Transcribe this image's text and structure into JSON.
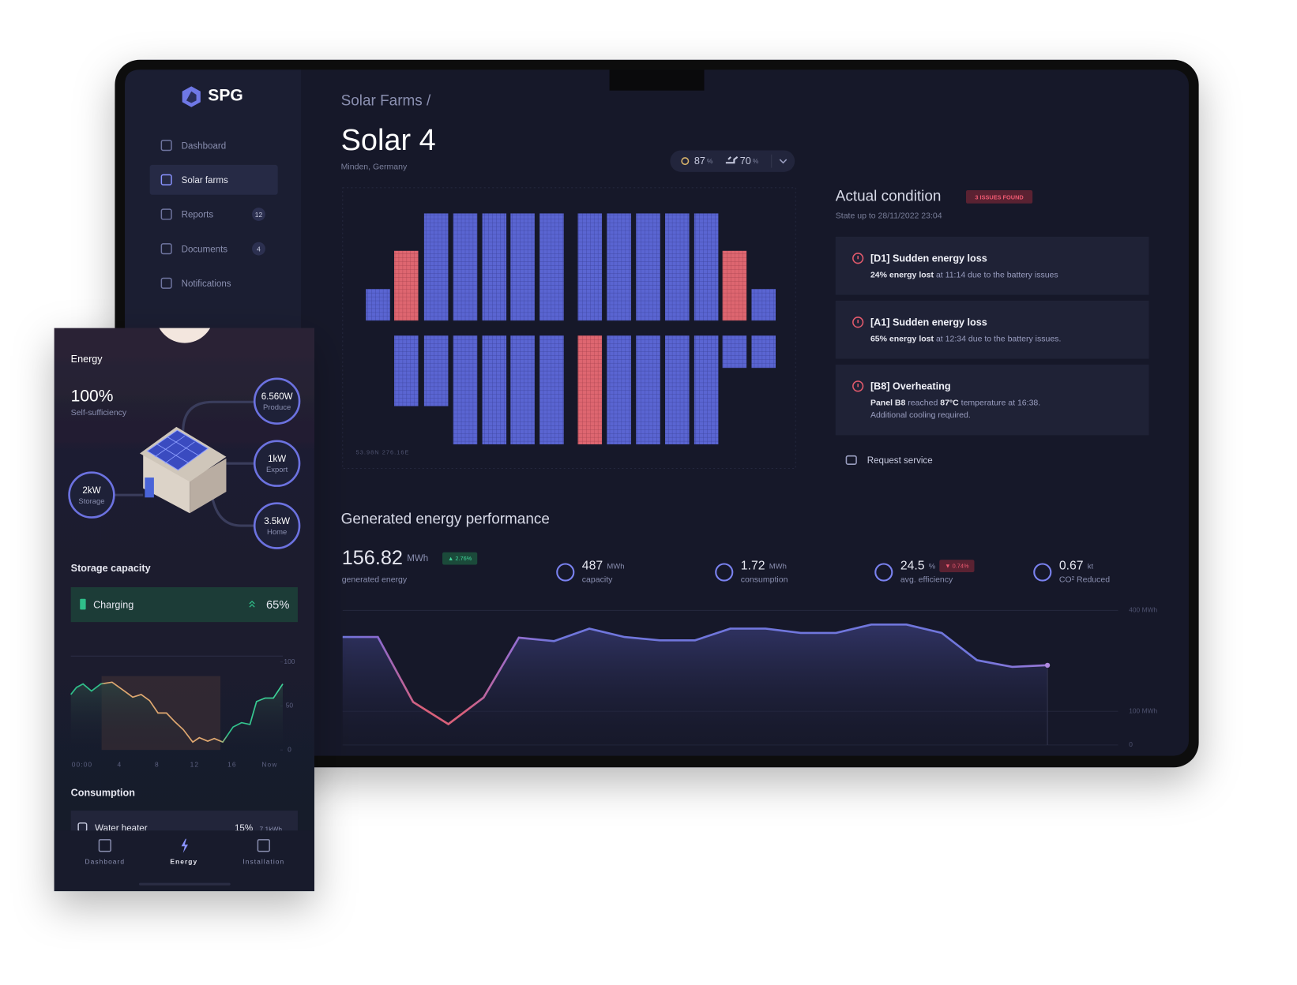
{
  "sidebar": {
    "logo": "SPG",
    "nav": [
      {
        "label": "Dashboard"
      },
      {
        "label": "Solar farms",
        "active": true
      },
      {
        "label": "Reports",
        "badge": 12
      },
      {
        "label": "Documents",
        "badge": 4
      },
      {
        "label": "Notifications"
      }
    ]
  },
  "header": {
    "breadcrumb": "Solar Farms /",
    "title": "Solar 4",
    "location": "Minden, Germany",
    "weather": [
      {
        "value": 87,
        "unit": "%"
      },
      {
        "value": 70,
        "unit": "%"
      }
    ]
  },
  "farm_map": {
    "coordinates": "53.98N  276.16E"
  },
  "condition": {
    "title": "Actual condition",
    "badge": "3 ISSUES FOUND",
    "state": "State up to 28/11/2022 23:04",
    "issues": [
      {
        "title": "[D1] Sudden energy loss",
        "detail": [
          {
            "text": "24% energy lost",
            "bold": true
          },
          {
            "text": " at 11:14 due to the battery issues"
          }
        ]
      },
      {
        "title": "[A1] Sudden energy loss",
        "detail": [
          {
            "text": "65% energy lost",
            "bold": true
          },
          {
            "text": " at 12:34 due to the battery issues."
          }
        ]
      },
      {
        "title": "[B8] Overheating",
        "detail": [
          {
            "text": "Panel B8",
            "bold": true
          },
          {
            "text": " reached "
          },
          {
            "text": "87°C",
            "bold": true
          },
          {
            "text": " temperature at 16:38."
          }
        ],
        "note": "Additional cooling required."
      }
    ],
    "action": "Request service"
  },
  "performance": {
    "title": "Generated energy performance",
    "stats": [
      {
        "value": 156.82,
        "unit": "MWh",
        "label": "generated energy",
        "change": "▲ 2.76%"
      },
      {
        "value": 487,
        "unit": "MWh",
        "label": "capacity"
      },
      {
        "value": 1.72,
        "unit": "MWh",
        "label": "consumption"
      },
      {
        "value": 24.5,
        "unit": "%",
        "label": "avg. efficiency",
        "change": "▼ 0.74%"
      },
      {
        "value": 0.67,
        "unit": "kt",
        "label": "CO² Reduced"
      }
    ],
    "chart": {
      "type": "line",
      "values": [
        321,
        321,
        128,
        62,
        141,
        319,
        309,
        346,
        321,
        311,
        311,
        346,
        346,
        333,
        333,
        358,
        358,
        333,
        252,
        232,
        237
      ],
      "color": "#6f74d8",
      "ylim": [
        0,
        400
      ],
      "yticks": [
        {
          "value": 0,
          "label": "0"
        },
        {
          "value": 100,
          "label": "100 MWh"
        },
        {
          "value": 400,
          "label": "400 MWh"
        }
      ]
    }
  },
  "phone": {
    "title": "Energy",
    "self_sufficiency": {
      "value": "100%",
      "label": "Self-sufficiency"
    },
    "nodes": [
      {
        "value": "6.560W",
        "label": "Produce"
      },
      {
        "value": "1kW",
        "label": "Export"
      },
      {
        "value": "3.5kW",
        "label": "Home"
      },
      {
        "value": "2kW",
        "label": "Storage"
      }
    ],
    "storage": {
      "title": "Storage capacity",
      "status": "Charging",
      "level": "65%"
    },
    "storage_chart": {
      "type": "line",
      "x": [
        -1.2,
        -0.6,
        0.1,
        1.0,
        2.0,
        3.2,
        4.5,
        5.4,
        6.3,
        7.2,
        8.1,
        9.0,
        9.9,
        10.8,
        11.8,
        12.5,
        13.4,
        14.1,
        15.0,
        16.1,
        17.0,
        17.9,
        18.6,
        19.5,
        20.4,
        21.4
      ],
      "values": [
        63,
        71,
        75,
        67,
        75,
        77,
        67,
        60,
        63,
        56,
        42,
        42,
        32,
        23,
        9,
        14,
        10,
        13,
        9,
        26,
        31,
        29,
        55,
        59,
        59,
        75
      ],
      "xlim": [
        -1.2,
        21.4
      ],
      "ylim": [
        0,
        100
      ],
      "yticks": [
        0,
        50,
        100
      ],
      "xticks": [
        {
          "value": 0,
          "label": "00:00"
        },
        4,
        8,
        12,
        16,
        {
          "value": 20,
          "label": "Now"
        }
      ]
    },
    "consumption": {
      "title": "Consumption",
      "items": [
        {
          "label": "Water heater",
          "share": "15%",
          "amount": "7.1kWh"
        }
      ]
    },
    "tabs": [
      {
        "label": "Dashboard"
      },
      {
        "label": "Energy",
        "active": true
      },
      {
        "label": "Installation"
      }
    ]
  }
}
